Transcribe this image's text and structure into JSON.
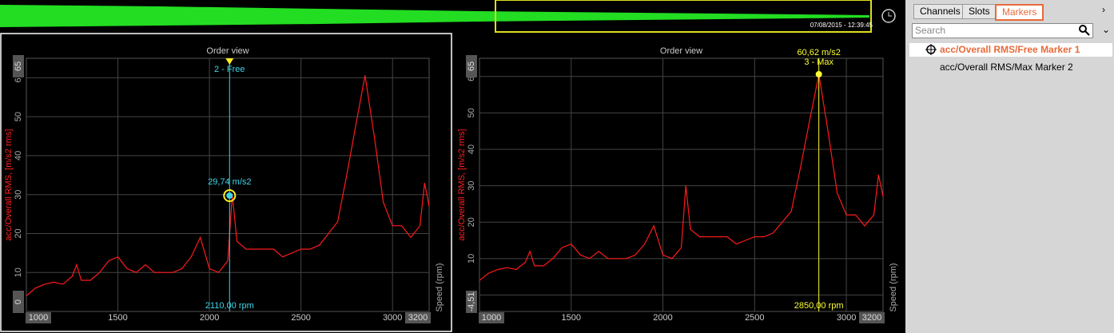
{
  "overview": {
    "timestamp": "07/08/2015 - 12:39:45"
  },
  "tabs": [
    "Channels",
    "Slots",
    "Markers"
  ],
  "active_tab": 2,
  "search_placeholder": "Search",
  "marker_list": [
    "acc/Overall RMS/Free Marker 1",
    "acc/Overall RMS/Max Marker 2"
  ],
  "charts": [
    {
      "type": "line",
      "title": "Order view",
      "y_label": "acc/Overall RMS, [m/s2 rms]",
      "x_label": "Speed (rpm)",
      "color": "#ff1a1a",
      "x": [
        1000,
        1050,
        1100,
        1150,
        1200,
        1250,
        1275,
        1300,
        1350,
        1400,
        1450,
        1500,
        1550,
        1600,
        1650,
        1700,
        1750,
        1800,
        1850,
        1900,
        1950,
        2000,
        2050,
        2100,
        2125,
        2150,
        2200,
        2250,
        2300,
        2350,
        2400,
        2450,
        2500,
        2550,
        2600,
        2650,
        2700,
        2750,
        2800,
        2850,
        2900,
        2950,
        3000,
        3050,
        3100,
        3150,
        3175,
        3200
      ],
      "values": [
        4,
        6,
        7,
        7.5,
        7,
        9,
        12,
        8,
        8,
        10,
        13,
        14,
        11,
        10,
        12,
        10,
        10,
        10,
        11,
        14,
        19,
        11,
        10,
        13,
        30,
        18,
        16,
        16,
        16,
        16,
        14,
        15,
        16,
        16,
        17,
        20,
        23,
        35,
        48,
        60.6,
        45,
        28,
        22,
        22,
        19,
        22,
        33,
        27
      ],
      "xlim": [
        1000,
        3200
      ],
      "xticks": [
        1500,
        2000,
        2500,
        3000
      ],
      "ylim": [
        0,
        65
      ],
      "yticks": [
        10,
        20,
        30,
        40,
        50,
        60
      ],
      "grid": true,
      "markers": [
        {
          "name": "2 - Free",
          "x": 2110,
          "x_label": "2110,00 rpm",
          "y": 29.74,
          "y_label": "29,74 m/s2",
          "color": "#3fd6e8"
        }
      ]
    },
    {
      "type": "line",
      "title": "Order view",
      "y_label": "acc/Overall RMS, [m/s2 rms]",
      "x_label": "Speed (rpm)",
      "color": "#ff1a1a",
      "x": [
        1000,
        1050,
        1100,
        1150,
        1200,
        1250,
        1275,
        1300,
        1350,
        1400,
        1450,
        1500,
        1550,
        1600,
        1650,
        1700,
        1750,
        1800,
        1850,
        1900,
        1950,
        2000,
        2050,
        2100,
        2125,
        2150,
        2200,
        2250,
        2300,
        2350,
        2400,
        2450,
        2500,
        2550,
        2600,
        2650,
        2700,
        2750,
        2800,
        2850,
        2900,
        2950,
        3000,
        3050,
        3100,
        3150,
        3175,
        3200
      ],
      "values": [
        4,
        6,
        7,
        7.5,
        7,
        9,
        12,
        8,
        8,
        10,
        13,
        14,
        11,
        10,
        12,
        10,
        10,
        10,
        11,
        14,
        19,
        11,
        10,
        13,
        30,
        18,
        16,
        16,
        16,
        16,
        14,
        15,
        16,
        16,
        17,
        20,
        23,
        35,
        48,
        60.6,
        45,
        28,
        22,
        22,
        19,
        22,
        33,
        27
      ],
      "xlim": [
        1000,
        3200
      ],
      "xticks": [
        1500,
        2000,
        2500,
        3000
      ],
      "ylim": [
        {
          "value": -4.51,
          "label": "-4,51"
        },
        65
      ],
      "yticks": [
        0,
        10,
        20,
        30,
        40,
        50,
        60
      ],
      "grid": true,
      "markers": [
        {
          "name": "3 - Max",
          "x": 2850,
          "x_label": "2850,00 rpm",
          "y": 60.62,
          "y_label": "60,62 m/s2",
          "color": "#ffff33"
        }
      ]
    }
  ]
}
